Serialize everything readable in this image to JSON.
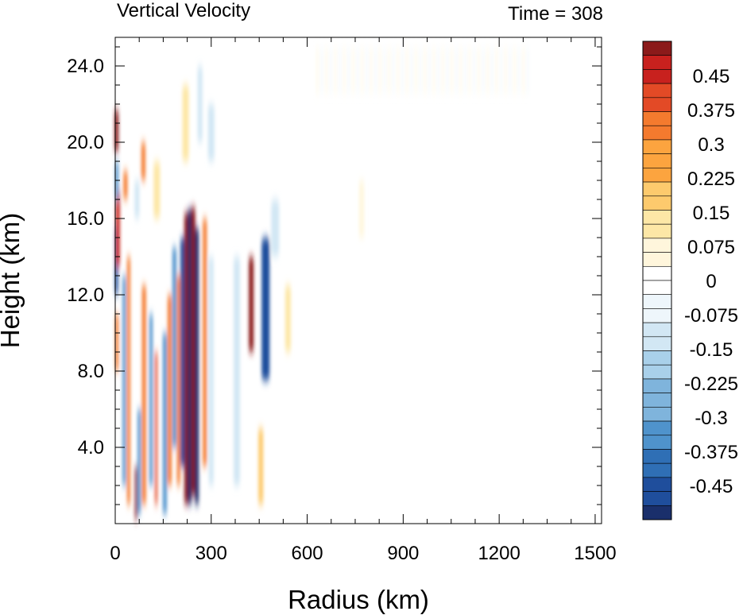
{
  "chart_data": {
    "type": "heatmap",
    "title": "Vertical Velocity",
    "subtitle": "Time = 308",
    "xlabel": "Radius (km)",
    "ylabel": "Height (km)",
    "xlim": [
      0,
      1520
    ],
    "ylim": [
      0,
      25.5
    ],
    "xticks": [
      0,
      300,
      600,
      900,
      1200,
      1500
    ],
    "xtick_labels": [
      "0",
      "300",
      "600",
      "900",
      "1200",
      "1500"
    ],
    "yticks": [
      4,
      8,
      12,
      16,
      20,
      24
    ],
    "ytick_labels": [
      "4.0",
      "8.0",
      "12.0",
      "16.0",
      "20.0",
      "24.0"
    ],
    "colorbar": {
      "range": [
        -0.525,
        0.525
      ],
      "label_values": [
        0.45,
        0.375,
        0.3,
        0.225,
        0.15,
        0.075,
        0,
        -0.075,
        -0.15,
        -0.225,
        -0.3,
        -0.375,
        -0.45
      ],
      "labels": [
        "0.45",
        "0.375",
        "0.3",
        "0.225",
        "0.15",
        "0.075",
        "0",
        "-0.075",
        "-0.15",
        "-0.225",
        "-0.3",
        "-0.375",
        "-0.45"
      ],
      "colors": [
        "#1a2f6b",
        "#1f4e9c",
        "#2f6fb5",
        "#4f93cc",
        "#7fb4dc",
        "#a9d0ea",
        "#d2e7f4",
        "#eef6fb",
        "#ffffff",
        "#fff6dc",
        "#fde7a6",
        "#fdca6d",
        "#fca43f",
        "#f47a2e",
        "#e34a26",
        "#c8211e",
        "#8b1a1a"
      ]
    },
    "features": [
      {
        "r": 222,
        "z0": 1.0,
        "z1": 16.3,
        "w": 0.6,
        "rw": 5
      },
      {
        "r": 233,
        "z0": 1.0,
        "z1": 16.5,
        "w": -0.55,
        "rw": 5
      },
      {
        "r": 244,
        "z0": 1.5,
        "z1": 16.6,
        "w": 0.6,
        "rw": 5
      },
      {
        "r": 255,
        "z0": 1.0,
        "z1": 15.5,
        "w": -0.5,
        "rw": 5
      },
      {
        "r": 210,
        "z0": 3.0,
        "z1": 15.0,
        "w": -0.45,
        "rw": 5
      },
      {
        "r": 198,
        "z0": 2.0,
        "z1": 13.0,
        "w": 0.35,
        "rw": 4
      },
      {
        "r": 185,
        "z0": 4.0,
        "z1": 14.5,
        "w": -0.35,
        "rw": 5
      },
      {
        "r": 170,
        "z0": 2.0,
        "z1": 12.0,
        "w": 0.3,
        "rw": 5
      },
      {
        "r": 155,
        "z0": 0.5,
        "z1": 10.0,
        "w": -0.3,
        "rw": 5
      },
      {
        "r": 128,
        "z0": 1.0,
        "z1": 9.0,
        "w": 0.4,
        "rw": 3
      },
      {
        "r": 112,
        "z0": 2.0,
        "z1": 11.0,
        "w": -0.35,
        "rw": 4
      },
      {
        "r": 90,
        "z0": 1.0,
        "z1": 12.5,
        "w": 0.3,
        "rw": 5
      },
      {
        "r": 75,
        "z0": 0.5,
        "z1": 6.0,
        "w": -0.35,
        "rw": 4
      },
      {
        "r": 65,
        "z0": 0.2,
        "z1": 3.0,
        "w": 0.55,
        "rw": 3
      },
      {
        "r": 42,
        "z0": 1.0,
        "z1": 14.0,
        "w": 0.3,
        "rw": 4
      },
      {
        "r": 28,
        "z0": 2.0,
        "z1": 13.0,
        "w": -0.3,
        "rw": 4
      },
      {
        "r": 4,
        "z0": 12.0,
        "z1": 15.5,
        "w": -0.45,
        "rw": 4
      },
      {
        "r": 8,
        "z0": 13.5,
        "z1": 17.5,
        "w": 0.45,
        "rw": 5
      },
      {
        "r": 4,
        "z0": 19.5,
        "z1": 21.7,
        "w": 0.55,
        "rw": 5
      },
      {
        "r": 5,
        "z0": 17.0,
        "z1": 19.0,
        "w": -0.3,
        "rw": 4
      },
      {
        "r": 5,
        "z0": 8.0,
        "z1": 11.0,
        "w": 0.3,
        "rw": 4
      },
      {
        "r": 32,
        "z0": 17.0,
        "z1": 18.5,
        "w": 0.35,
        "rw": 5
      },
      {
        "r": 88,
        "z0": 18.0,
        "z1": 20.0,
        "w": 0.35,
        "rw": 5
      },
      {
        "r": 68,
        "z0": 16.0,
        "z1": 18.0,
        "w": -0.15,
        "rw": 6
      },
      {
        "r": 280,
        "z0": 3.0,
        "z1": 16.0,
        "w": 0.3,
        "rw": 5
      },
      {
        "r": 300,
        "z0": 2.0,
        "z1": 14.0,
        "w": -0.15,
        "rw": 6
      },
      {
        "r": 425,
        "z0": 9.0,
        "z1": 14.0,
        "w": 0.5,
        "rw": 6
      },
      {
        "r": 470,
        "z0": 7.5,
        "z1": 15.0,
        "w": -0.45,
        "rw": 10
      },
      {
        "r": 540,
        "z0": 9.0,
        "z1": 12.5,
        "w": 0.15,
        "rw": 7
      },
      {
        "r": 380,
        "z0": 2.0,
        "z1": 14.0,
        "w": -0.1,
        "rw": 8
      },
      {
        "r": 455,
        "z0": 1.0,
        "z1": 5.0,
        "w": 0.2,
        "rw": 6
      },
      {
        "r": 500,
        "z0": 14.0,
        "z1": 17.0,
        "w": -0.1,
        "rw": 10
      },
      {
        "r": 220,
        "z0": 19.0,
        "z1": 23.0,
        "w": 0.15,
        "rw": 8
      },
      {
        "r": 265,
        "z0": 20.0,
        "z1": 24.0,
        "w": -0.12,
        "rw": 6
      },
      {
        "r": 130,
        "z0": 16.0,
        "z1": 19.0,
        "w": 0.12,
        "rw": 8
      },
      {
        "r": 770,
        "z0": 15.0,
        "z1": 18.0,
        "w": 0.08,
        "rw": 6
      },
      {
        "r": 300,
        "z0": 19.0,
        "z1": 22.0,
        "w": -0.1,
        "rw": 8
      }
    ],
    "upper_noise_band": {
      "r0": 630,
      "r1": 1300,
      "z0": 22.5,
      "z1": 25.0,
      "w": 0.08
    }
  }
}
